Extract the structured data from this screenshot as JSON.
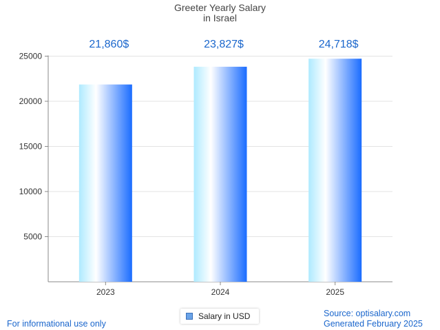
{
  "chart_data": {
    "type": "bar",
    "title": "Greeter Yearly Salary",
    "subtitle": "in Israel",
    "categories": [
      "2023",
      "2024",
      "2025"
    ],
    "series": [
      {
        "name": "Salary in USD",
        "values": [
          21860,
          23827,
          24718
        ]
      }
    ],
    "data_labels": [
      "21,860$",
      "23,827$",
      "24,718$"
    ],
    "y_ticks": [
      5000,
      10000,
      15000,
      20000,
      25000
    ],
    "ylim": [
      0,
      25000
    ],
    "grid": true,
    "legend": "bottom-center"
  },
  "footer": {
    "left": "For informational use only",
    "source": "Source: optisalary.com",
    "generated": "Generated February 2025"
  },
  "colors": {
    "bar_light": "#aeeaff",
    "bar_mid": "#ffffff",
    "bar_dark": "#1a6cff",
    "label": "#1a66cc",
    "grid": "#e3e3e3",
    "axis": "#888888"
  }
}
